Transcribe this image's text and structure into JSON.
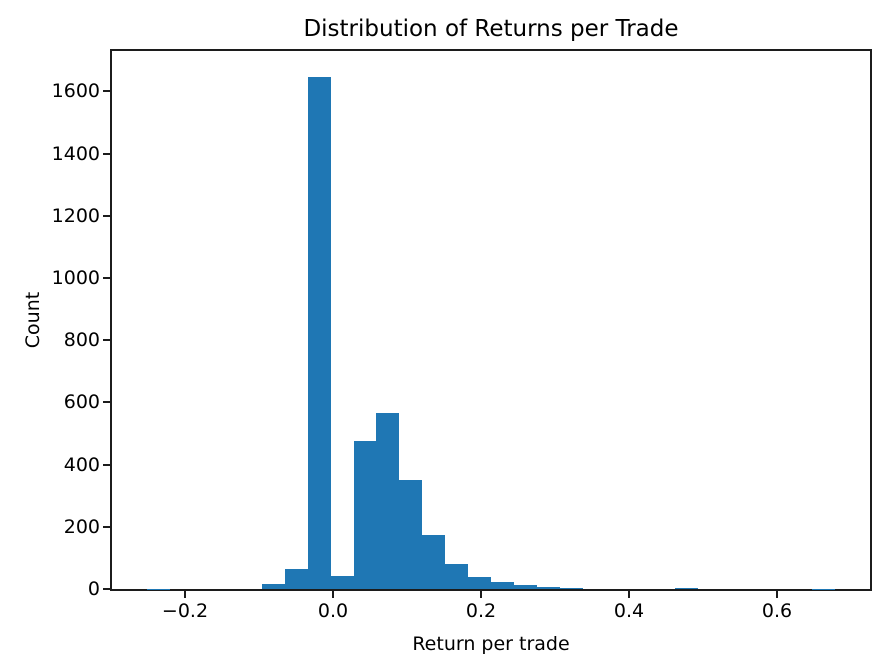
{
  "figure": {
    "title": "Distribution of Returns per Trade",
    "xlabel": "Return per trade",
    "ylabel": "Count"
  },
  "chart_data": {
    "type": "bar",
    "subtype": "histogram",
    "title": "Distribution of Returns per Trade",
    "xlabel": "Return per trade",
    "ylabel": "Count",
    "bar_color": "#1f77b4",
    "axis_color": "#1c1c1c",
    "grid": false,
    "legend": false,
    "xlim": [
      -0.2986,
      0.7257
    ],
    "ylim": [
      0,
      1730
    ],
    "bin_start": -0.2512,
    "bin_width": 0.031,
    "counts": [
      1,
      0,
      0,
      0,
      0,
      15,
      65,
      1645,
      42,
      475,
      565,
      351,
      175,
      80,
      40,
      22,
      12,
      5,
      4,
      0,
      0,
      0,
      0,
      3,
      0,
      0,
      0,
      0,
      0,
      1
    ],
    "xticks": [
      {
        "value": -0.2,
        "label": "−0.2"
      },
      {
        "value": 0.0,
        "label": "0.0"
      },
      {
        "value": 0.2,
        "label": "0.2"
      },
      {
        "value": 0.4,
        "label": "0.4"
      },
      {
        "value": 0.6,
        "label": "0.6"
      }
    ],
    "yticks": [
      {
        "value": 0,
        "label": "0"
      },
      {
        "value": 200,
        "label": "200"
      },
      {
        "value": 400,
        "label": "400"
      },
      {
        "value": 600,
        "label": "600"
      },
      {
        "value": 800,
        "label": "800"
      },
      {
        "value": 1000,
        "label": "1000"
      },
      {
        "value": 1200,
        "label": "1200"
      },
      {
        "value": 1400,
        "label": "1400"
      },
      {
        "value": 1600,
        "label": "1600"
      }
    ]
  }
}
